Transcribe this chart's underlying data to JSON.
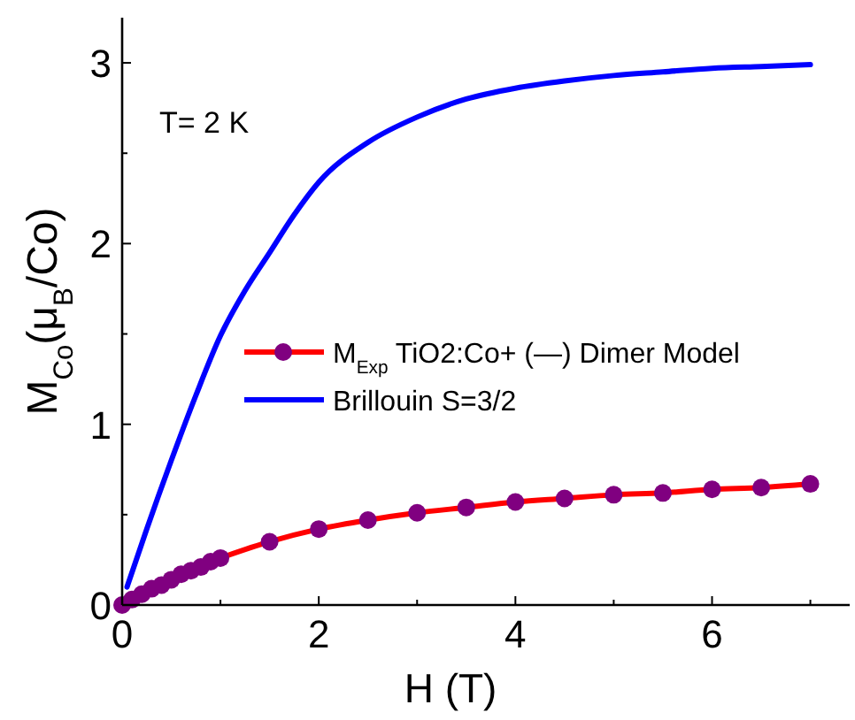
{
  "chart_data": {
    "type": "line",
    "xlabel": "H (T)",
    "ylabel": "M$_{Co}$(μ$_{B}$/Co)",
    "annotations": [
      "T= 2 K"
    ],
    "xlim": [
      0,
      7.4
    ],
    "ylim": [
      0,
      3.25
    ],
    "xticks": [
      0,
      {
        "value": 1,
        "label": null
      },
      2,
      {
        "value": 3,
        "label": null
      },
      4,
      {
        "value": 5,
        "label": null
      },
      6,
      {
        "value": 7,
        "label": null
      }
    ],
    "yticks": [
      0,
      {
        "value": 0.5,
        "label": null
      },
      1,
      {
        "value": 1.5,
        "label": null
      },
      2,
      {
        "value": 2.5,
        "label": null
      },
      3
    ],
    "legend": "right",
    "grid": false,
    "series": [
      {
        "name": "M$_{Exp}$ TiO2:Co+ (—) Dimer Model",
        "color": "#ff0000",
        "marker": "none",
        "x": [
          1,
          1.5,
          2,
          2.5,
          3,
          3.5,
          4,
          4.5,
          5,
          5.5,
          6,
          6.5,
          7
        ],
        "values": [
          0.26,
          0.35,
          0.42,
          0.47,
          0.51,
          0.54,
          0.57,
          0.59,
          0.61,
          0.62,
          0.64,
          0.65,
          0.67
        ]
      },
      {
        "type": "scatter",
        "color": "#800080",
        "marker": "circle",
        "x": [
          0,
          0.1,
          0.2,
          0.3,
          0.4,
          0.5,
          0.6,
          0.7,
          0.8,
          0.9,
          1,
          1.5,
          2,
          2.5,
          3,
          3.5,
          4,
          4.5,
          5,
          5.5,
          6,
          6.5,
          7
        ],
        "values": [
          0,
          0.03,
          0.06,
          0.09,
          0.11,
          0.14,
          0.17,
          0.19,
          0.21,
          0.24,
          0.26,
          0.35,
          0.42,
          0.47,
          0.51,
          0.54,
          0.57,
          0.59,
          0.61,
          0.62,
          0.64,
          0.65,
          0.67
        ]
      },
      {
        "name": "Brillouin S=3/2",
        "color": "#0000ff",
        "marker": "none",
        "x": [
          0.05,
          0.25,
          0.5,
          0.75,
          1,
          1.25,
          1.5,
          1.75,
          2,
          2.5,
          3,
          3.5,
          4,
          4.5,
          5,
          5.5,
          6,
          6.5,
          7
        ],
        "values": [
          0.1,
          0.42,
          0.8,
          1.16,
          1.49,
          1.74,
          1.95,
          2.16,
          2.34,
          2.56,
          2.7,
          2.8,
          2.86,
          2.9,
          2.93,
          2.95,
          2.97,
          2.98,
          2.99
        ]
      }
    ]
  }
}
